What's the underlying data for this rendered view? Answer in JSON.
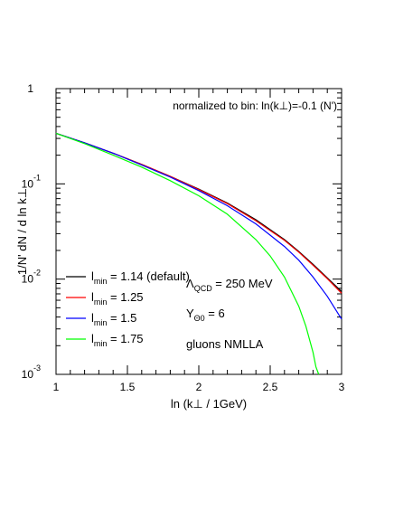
{
  "chart_data": {
    "type": "line",
    "title": "",
    "xlabel": "ln (k⊥ / 1GeV)",
    "ylabel": "1/N' dN / d ln k⊥",
    "xlim": [
      1,
      3
    ],
    "ylim": [
      0.001,
      1
    ],
    "yscale": "log",
    "x_ticks": [
      {
        "value": 1,
        "label": "1"
      },
      {
        "value": 1.5,
        "label": "1.5"
      },
      {
        "value": 2,
        "label": "2"
      },
      {
        "value": 2.5,
        "label": "2.5"
      },
      {
        "value": 3,
        "label": "3"
      }
    ],
    "y_ticks": [
      {
        "value": 1,
        "base": "1",
        "exp": ""
      },
      {
        "value": 0.1,
        "base": "10",
        "exp": "-1"
      },
      {
        "value": 0.01,
        "base": "10",
        "exp": "-2"
      },
      {
        "value": 0.001,
        "base": "10",
        "exp": "-3"
      }
    ],
    "annotation_top": "normalized to bin: ln(k⊥)=-0.1 (N')",
    "annotations": [
      {
        "main": "Λ",
        "sub": "QCD",
        "rest": " = 250 MeV"
      },
      {
        "main": "Y",
        "sub": "Θ0",
        "rest": " = 6"
      },
      {
        "main": "gluons NMLLA",
        "sub": "",
        "rest": ""
      }
    ],
    "legend_position": "bottom-left",
    "series": [
      {
        "name": "l",
        "name_sub": "min",
        "name_rest": " = 1.14 (default)",
        "color": "#000000",
        "x": [
          1.0,
          1.2,
          1.4,
          1.6,
          1.8,
          2.0,
          2.2,
          2.4,
          2.6,
          2.7,
          2.8,
          2.9,
          3.0
        ],
        "y": [
          0.34,
          0.27,
          0.21,
          0.16,
          0.12,
          0.088,
          0.063,
          0.042,
          0.026,
          0.0195,
          0.0143,
          0.0103,
          0.0074
        ]
      },
      {
        "name": "l",
        "name_sub": "min",
        "name_rest": " = 1.25",
        "color": "#ff0000",
        "x": [
          1.0,
          1.2,
          1.4,
          1.6,
          1.8,
          2.0,
          2.2,
          2.4,
          2.6,
          2.7,
          2.8,
          2.9,
          3.0
        ],
        "y": [
          0.34,
          0.27,
          0.21,
          0.16,
          0.12,
          0.087,
          0.062,
          0.041,
          0.0255,
          0.0192,
          0.014,
          0.0101,
          0.0071
        ]
      },
      {
        "name": "l",
        "name_sub": "min",
        "name_rest": " = 1.5",
        "color": "#0000ff",
        "x": [
          1.0,
          1.2,
          1.4,
          1.6,
          1.8,
          2.0,
          2.2,
          2.4,
          2.6,
          2.7,
          2.8,
          2.9,
          3.0
        ],
        "y": [
          0.34,
          0.27,
          0.21,
          0.158,
          0.118,
          0.085,
          0.059,
          0.038,
          0.022,
          0.0158,
          0.0105,
          0.0066,
          0.0038
        ]
      },
      {
        "name": "l",
        "name_sub": "min",
        "name_rest": " = 1.75",
        "color": "#00ff00",
        "x": [
          1.0,
          1.2,
          1.4,
          1.6,
          1.8,
          2.0,
          2.2,
          2.4,
          2.5,
          2.6,
          2.7,
          2.75,
          2.8,
          2.82,
          2.84
        ],
        "y": [
          0.34,
          0.265,
          0.2,
          0.15,
          0.108,
          0.075,
          0.048,
          0.026,
          0.0175,
          0.0105,
          0.0052,
          0.0032,
          0.0017,
          0.0012,
          0.001
        ]
      }
    ]
  }
}
